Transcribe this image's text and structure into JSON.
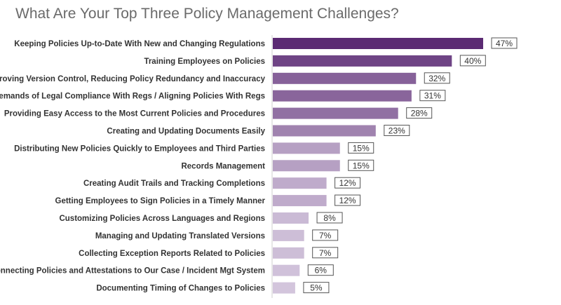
{
  "chart_data": {
    "type": "bar",
    "orientation": "horizontal",
    "title": "What Are Your Top Three Policy Management Challenges?",
    "categories": [
      "Keeping Policies Up-to-Date With New and Changing Regulations",
      "Training Employees on Policies",
      "Improving Version Control, Reducing Policy Redundancy and Inaccuracy",
      "Demands of Legal Compliance With Regs / Aligning Policies With Regs",
      "Providing Easy Access to the Most Current Policies and Procedures",
      "Creating and Updating Documents Easily",
      "Distributing New Policies Quickly to Employees and Third Parties",
      "Records Management",
      "Creating Audit Trails and Tracking Completions",
      "Getting Employees to Sign Policies in a Timely Manner",
      "Customizing Policies Across Languages and Regions",
      "Managing and Updating Translated Versions",
      "Collecting Exception Reports Related to Policies",
      "Connecting Policies and Attestations to Our Case / Incident Mgt System",
      "Documenting Timing of Changes to Policies"
    ],
    "values": [
      47,
      40,
      32,
      31,
      28,
      23,
      15,
      15,
      12,
      12,
      8,
      7,
      7,
      6,
      5
    ],
    "value_labels": [
      "47%",
      "40%",
      "32%",
      "31%",
      "28%",
      "23%",
      "15%",
      "15%",
      "12%",
      "12%",
      "8%",
      "7%",
      "7%",
      "6%",
      "5%"
    ],
    "xlim": [
      0,
      47
    ],
    "grid": false,
    "legend": "none",
    "colors": {
      "max": "#5b2a73",
      "min": "#d3c5dc"
    }
  }
}
